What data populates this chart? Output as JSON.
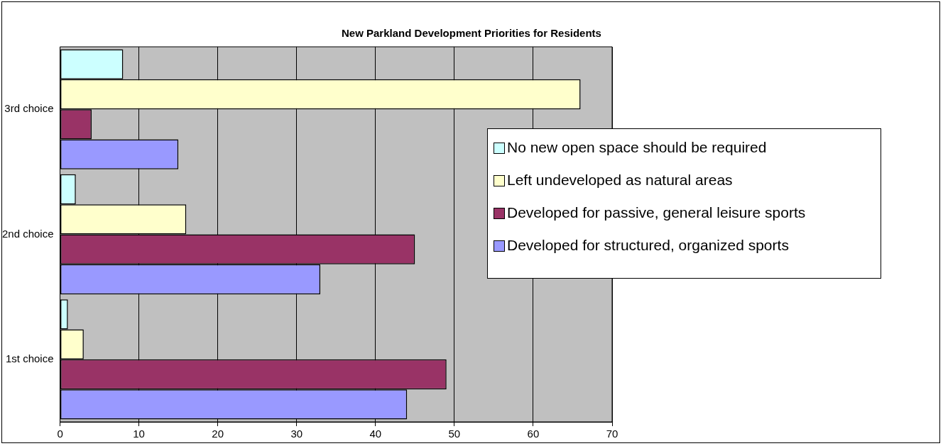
{
  "chart_data": {
    "type": "bar",
    "orientation": "horizontal",
    "title": "New Parkland Development Priorities for Residents",
    "categories": [
      "3rd choice",
      "2nd choice",
      "1st choice"
    ],
    "series": [
      {
        "name": "No new open space should be required",
        "color": "#ccffff",
        "values": [
          8,
          2,
          1
        ]
      },
      {
        "name": "Left undeveloped as natural areas",
        "color": "#ffffcc",
        "values": [
          66,
          16,
          3
        ]
      },
      {
        "name": "Developed for passive, general leisure sports",
        "color": "#993366",
        "values": [
          4,
          45,
          49
        ]
      },
      {
        "name": "Developed for structured, organized sports",
        "color": "#9999ff",
        "values": [
          15,
          33,
          44
        ]
      }
    ],
    "xlim": [
      0,
      70
    ],
    "xticks": [
      0,
      10,
      20,
      30,
      40,
      50,
      60,
      70
    ],
    "grid": "x",
    "legend": "right"
  }
}
